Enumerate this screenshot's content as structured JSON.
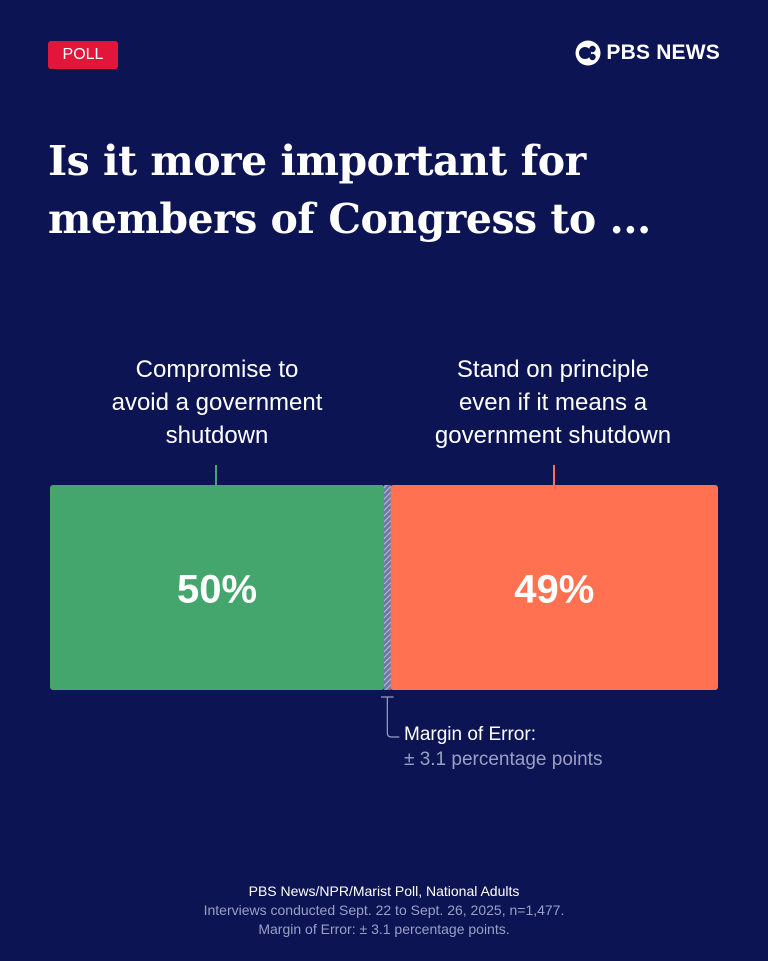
{
  "badge": {
    "label": "POLL",
    "color": "#e4153a"
  },
  "brand": {
    "name": "PBS NEWS",
    "icon": "pbs-head-icon"
  },
  "title_lines": [
    "Is it more important for",
    "members of Congress to ..."
  ],
  "chart_data": {
    "type": "bar",
    "orientation": "horizontal-stacked",
    "categories": [
      "Compromise to avoid a government shutdown",
      "Stand on principle even if it means a government shutdown"
    ],
    "category_lines": [
      [
        "Compromise to",
        "avoid a government",
        "shutdown"
      ],
      [
        "Stand on principle",
        "even if it means a",
        "government shutdown"
      ]
    ],
    "values": [
      50,
      49
    ],
    "value_labels": [
      "50%",
      "49%"
    ],
    "colors": [
      "#44a66d",
      "#ff7150"
    ],
    "unsure_value": 1,
    "xlim": [
      0,
      100
    ],
    "margin_of_error": {
      "title": "Margin of Error:",
      "value": "± 3.1 percentage points"
    }
  },
  "footer": {
    "source": "PBS News/NPR/Marist Poll, National Adults",
    "details": "Interviews conducted Sept. 22 to Sept. 26, 2025, n=1,477.",
    "moe": "Margin of Error: ± 3.1 percentage points."
  }
}
